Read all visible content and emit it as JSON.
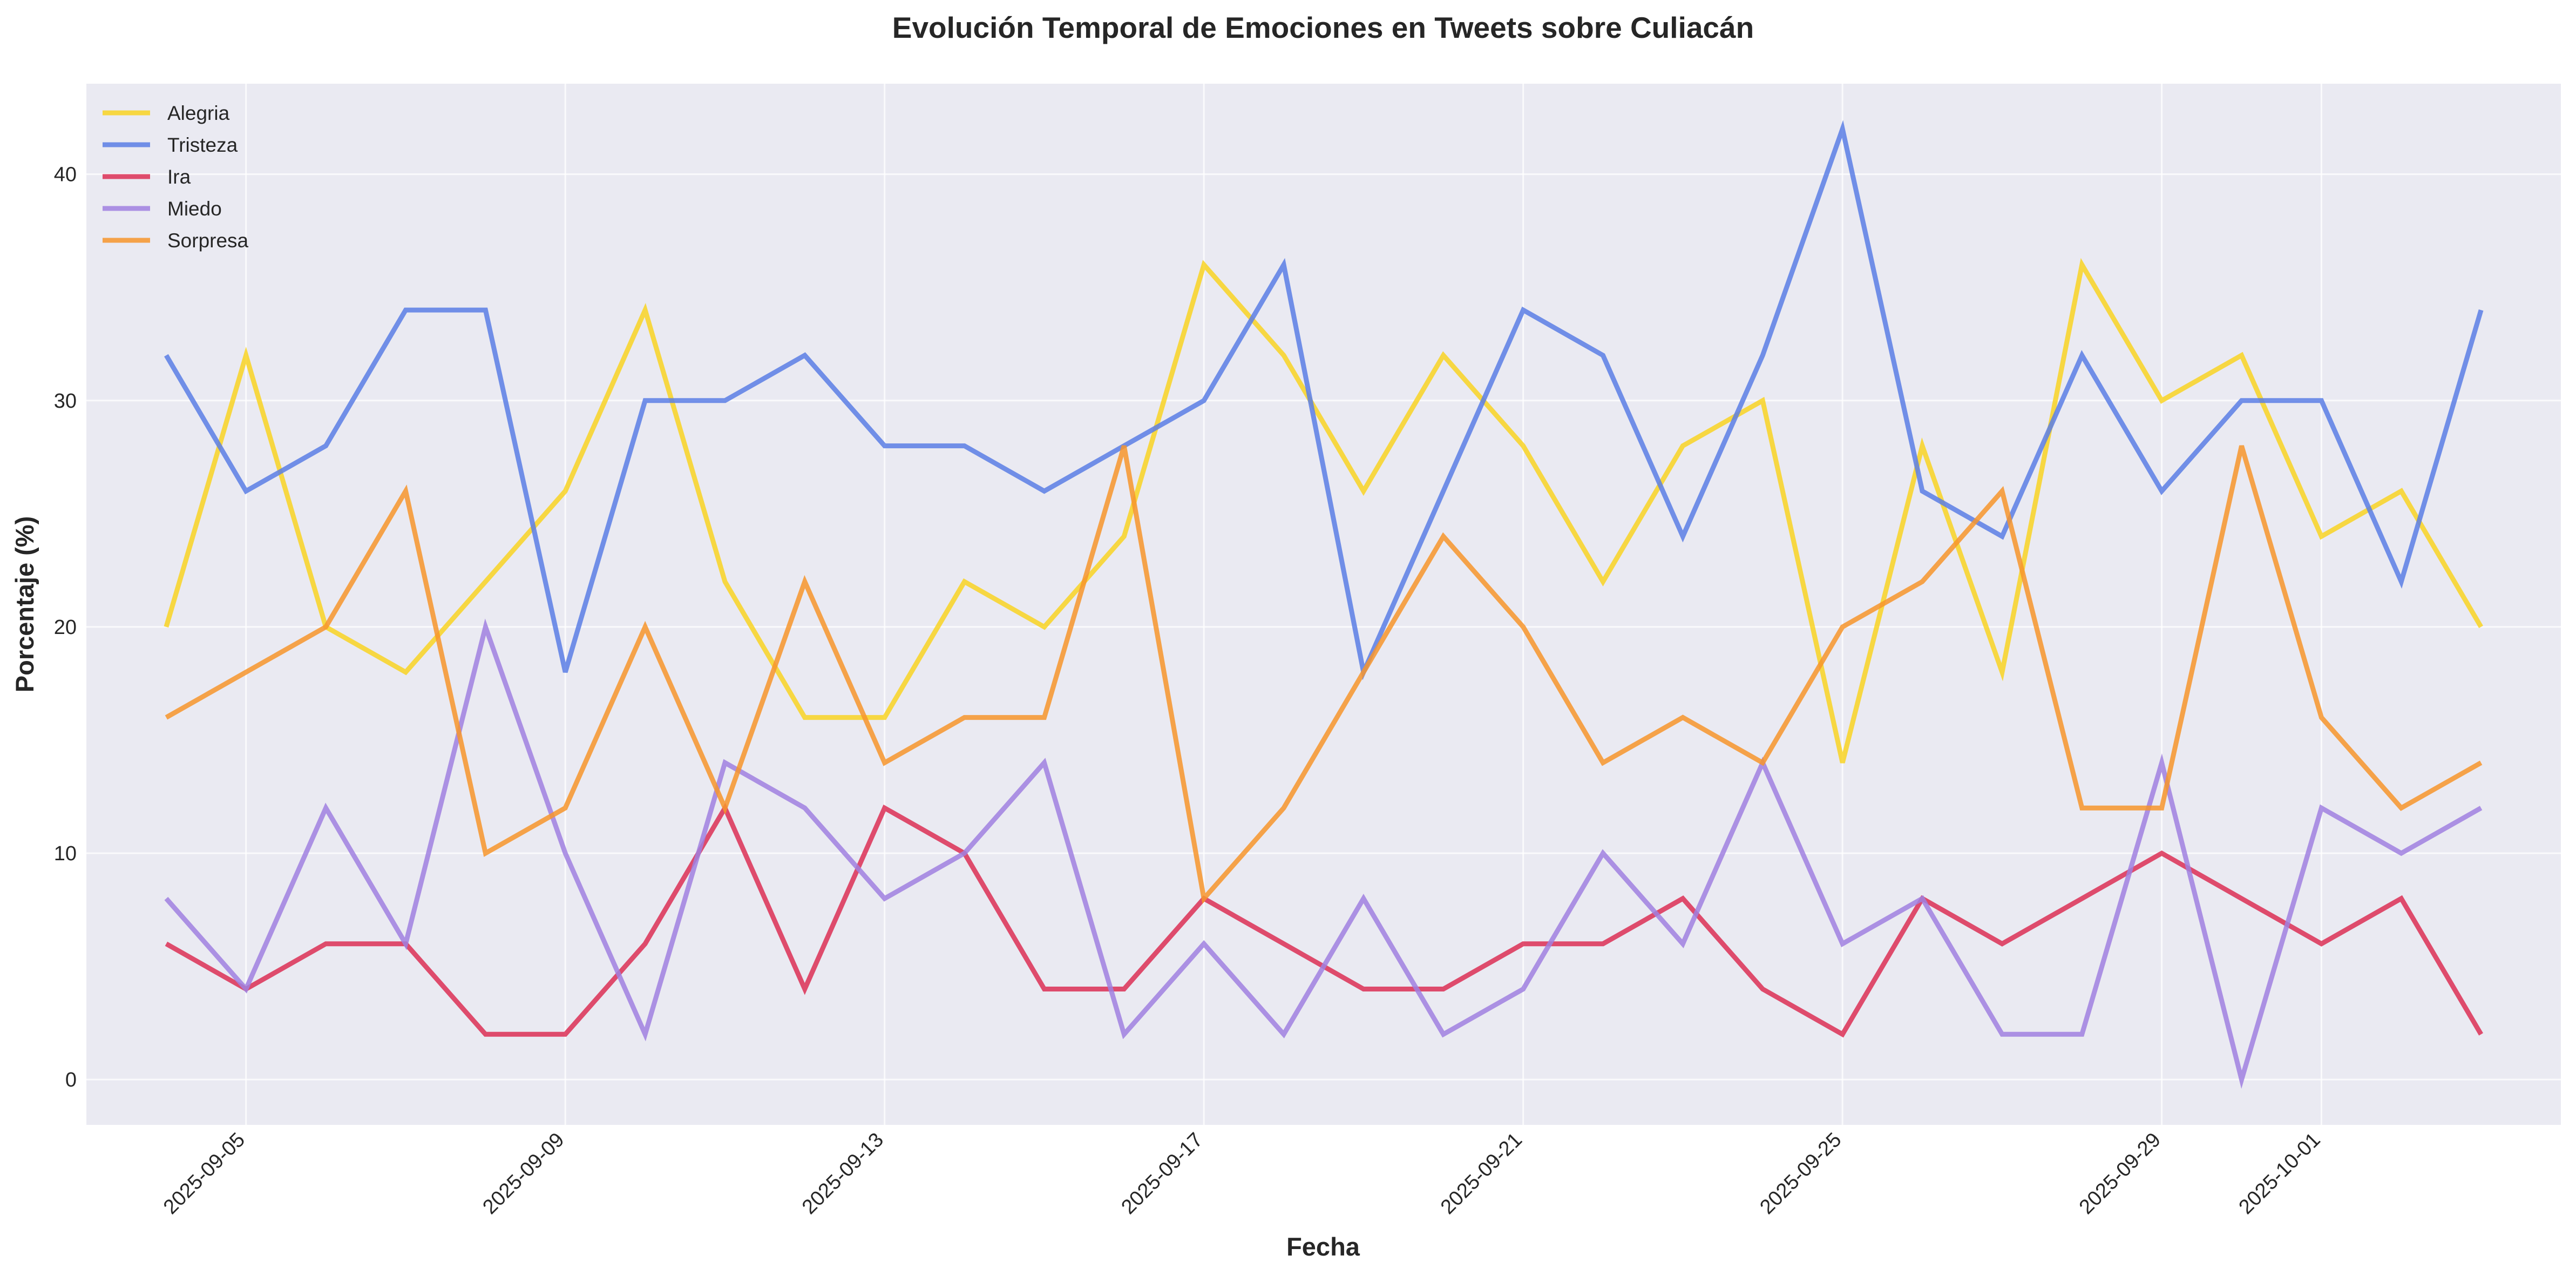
{
  "chart_data": {
    "type": "line",
    "title": "Evolución Temporal de Emociones en Tweets sobre Culiacán",
    "xlabel": "Fecha",
    "ylabel": "Porcentaje (%)",
    "x_type": "date",
    "x": [
      "2025-09-04",
      "2025-09-05",
      "2025-09-06",
      "2025-09-07",
      "2025-09-08",
      "2025-09-09",
      "2025-09-10",
      "2025-09-11",
      "2025-09-12",
      "2025-09-13",
      "2025-09-14",
      "2025-09-15",
      "2025-09-16",
      "2025-09-17",
      "2025-09-18",
      "2025-09-19",
      "2025-09-20",
      "2025-09-21",
      "2025-09-22",
      "2025-09-23",
      "2025-09-24",
      "2025-09-25",
      "2025-09-26",
      "2025-09-27",
      "2025-09-28",
      "2025-09-29",
      "2025-09-30",
      "2025-10-01",
      "2025-10-02",
      "2025-10-03"
    ],
    "xlim": [
      "2025-09-03",
      "2025-10-04"
    ],
    "x_ticks": [
      "2025-09-05",
      "2025-09-09",
      "2025-09-13",
      "2025-09-17",
      "2025-09-21",
      "2025-09-25",
      "2025-09-29",
      "2025-10-01"
    ],
    "ylim": [
      -2,
      44
    ],
    "y_ticks": [
      0,
      10,
      20,
      30,
      40
    ],
    "grid": true,
    "legend_position": "top-left",
    "series": [
      {
        "name": "Alegria",
        "color": "#f9d423",
        "values": [
          20,
          32,
          20,
          18,
          22,
          26,
          34,
          22,
          16,
          16,
          22,
          20,
          24,
          36,
          32,
          26,
          32,
          28,
          22,
          28,
          30,
          14,
          28,
          18,
          36,
          30,
          32,
          24,
          26,
          20
        ]
      },
      {
        "name": "Tristeza",
        "color": "#5b7ee5",
        "values": [
          32,
          26,
          28,
          34,
          34,
          18,
          30,
          30,
          32,
          28,
          28,
          26,
          28,
          30,
          36,
          18,
          26,
          34,
          32,
          24,
          32,
          42,
          26,
          24,
          32,
          26,
          30,
          30,
          22,
          34
        ]
      },
      {
        "name": "Ira",
        "color": "#dc2f55",
        "values": [
          6,
          4,
          6,
          6,
          2,
          2,
          6,
          12,
          4,
          12,
          10,
          4,
          4,
          8,
          6,
          4,
          4,
          6,
          6,
          8,
          4,
          2,
          8,
          6,
          8,
          10,
          8,
          6,
          8,
          2
        ]
      },
      {
        "name": "Miedo",
        "color": "#a080e0",
        "values": [
          8,
          4,
          12,
          6,
          20,
          10,
          2,
          14,
          12,
          8,
          10,
          14,
          2,
          6,
          2,
          8,
          2,
          4,
          10,
          6,
          14,
          6,
          8,
          2,
          2,
          14,
          0,
          12,
          10,
          12
        ]
      },
      {
        "name": "Sorpresa",
        "color": "#f7952b",
        "values": [
          16,
          18,
          20,
          26,
          10,
          12,
          20,
          12,
          22,
          14,
          16,
          16,
          28,
          8,
          12,
          18,
          24,
          20,
          14,
          16,
          14,
          20,
          22,
          26,
          12,
          12,
          28,
          16,
          12,
          14
        ]
      }
    ]
  }
}
